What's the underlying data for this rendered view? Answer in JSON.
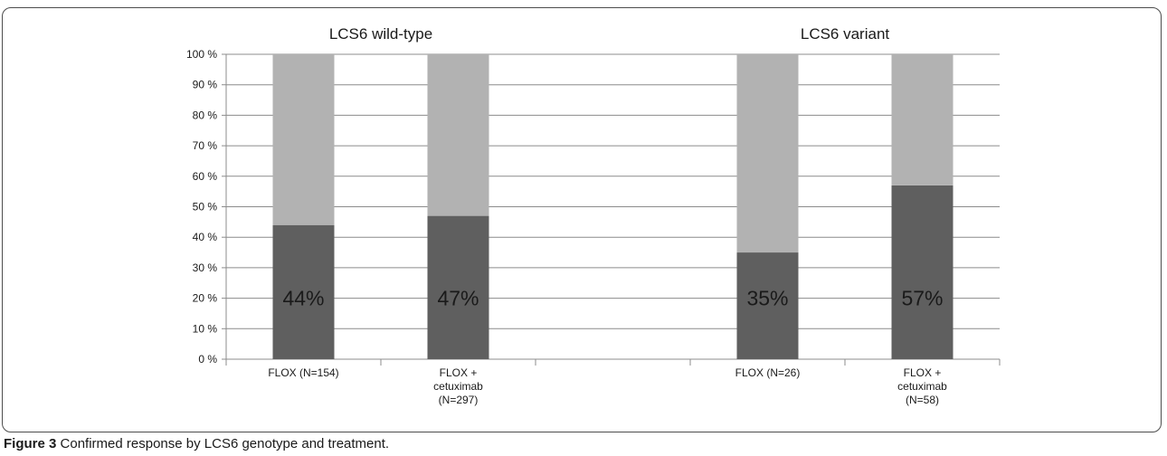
{
  "chart_data": {
    "type": "bar",
    "stacked": true,
    "y_axis": {
      "ylim": [
        0,
        100
      ],
      "tick_labels": [
        "0 %",
        "10 %",
        "20 %",
        "30 %",
        "40 %",
        "50 %",
        "60 %",
        "70 %",
        "80 %",
        "90 %",
        "100 %"
      ],
      "grid": true
    },
    "panel_titles": [
      "LCS6 wild-type",
      "LCS6 variant"
    ],
    "categories": [
      "FLOX (N=154)",
      "FLOX +\ncetuximab\n(N=297)",
      "",
      "FLOX (N=26)",
      "FLOX +\ncetuximab\n(N=58)"
    ],
    "series": [
      {
        "values": [
          44,
          47,
          null,
          35,
          57
        ],
        "color": "#5f5f5f"
      },
      {
        "values": [
          56,
          53,
          null,
          65,
          43
        ],
        "color": "#b2b2b2"
      }
    ],
    "data_labels": [
      "44%",
      "47%",
      "",
      "35%",
      "57%"
    ],
    "legend": "none"
  },
  "caption": {
    "label": "Figure 3",
    "text": " Confirmed response by LCS6 genotype and treatment."
  }
}
